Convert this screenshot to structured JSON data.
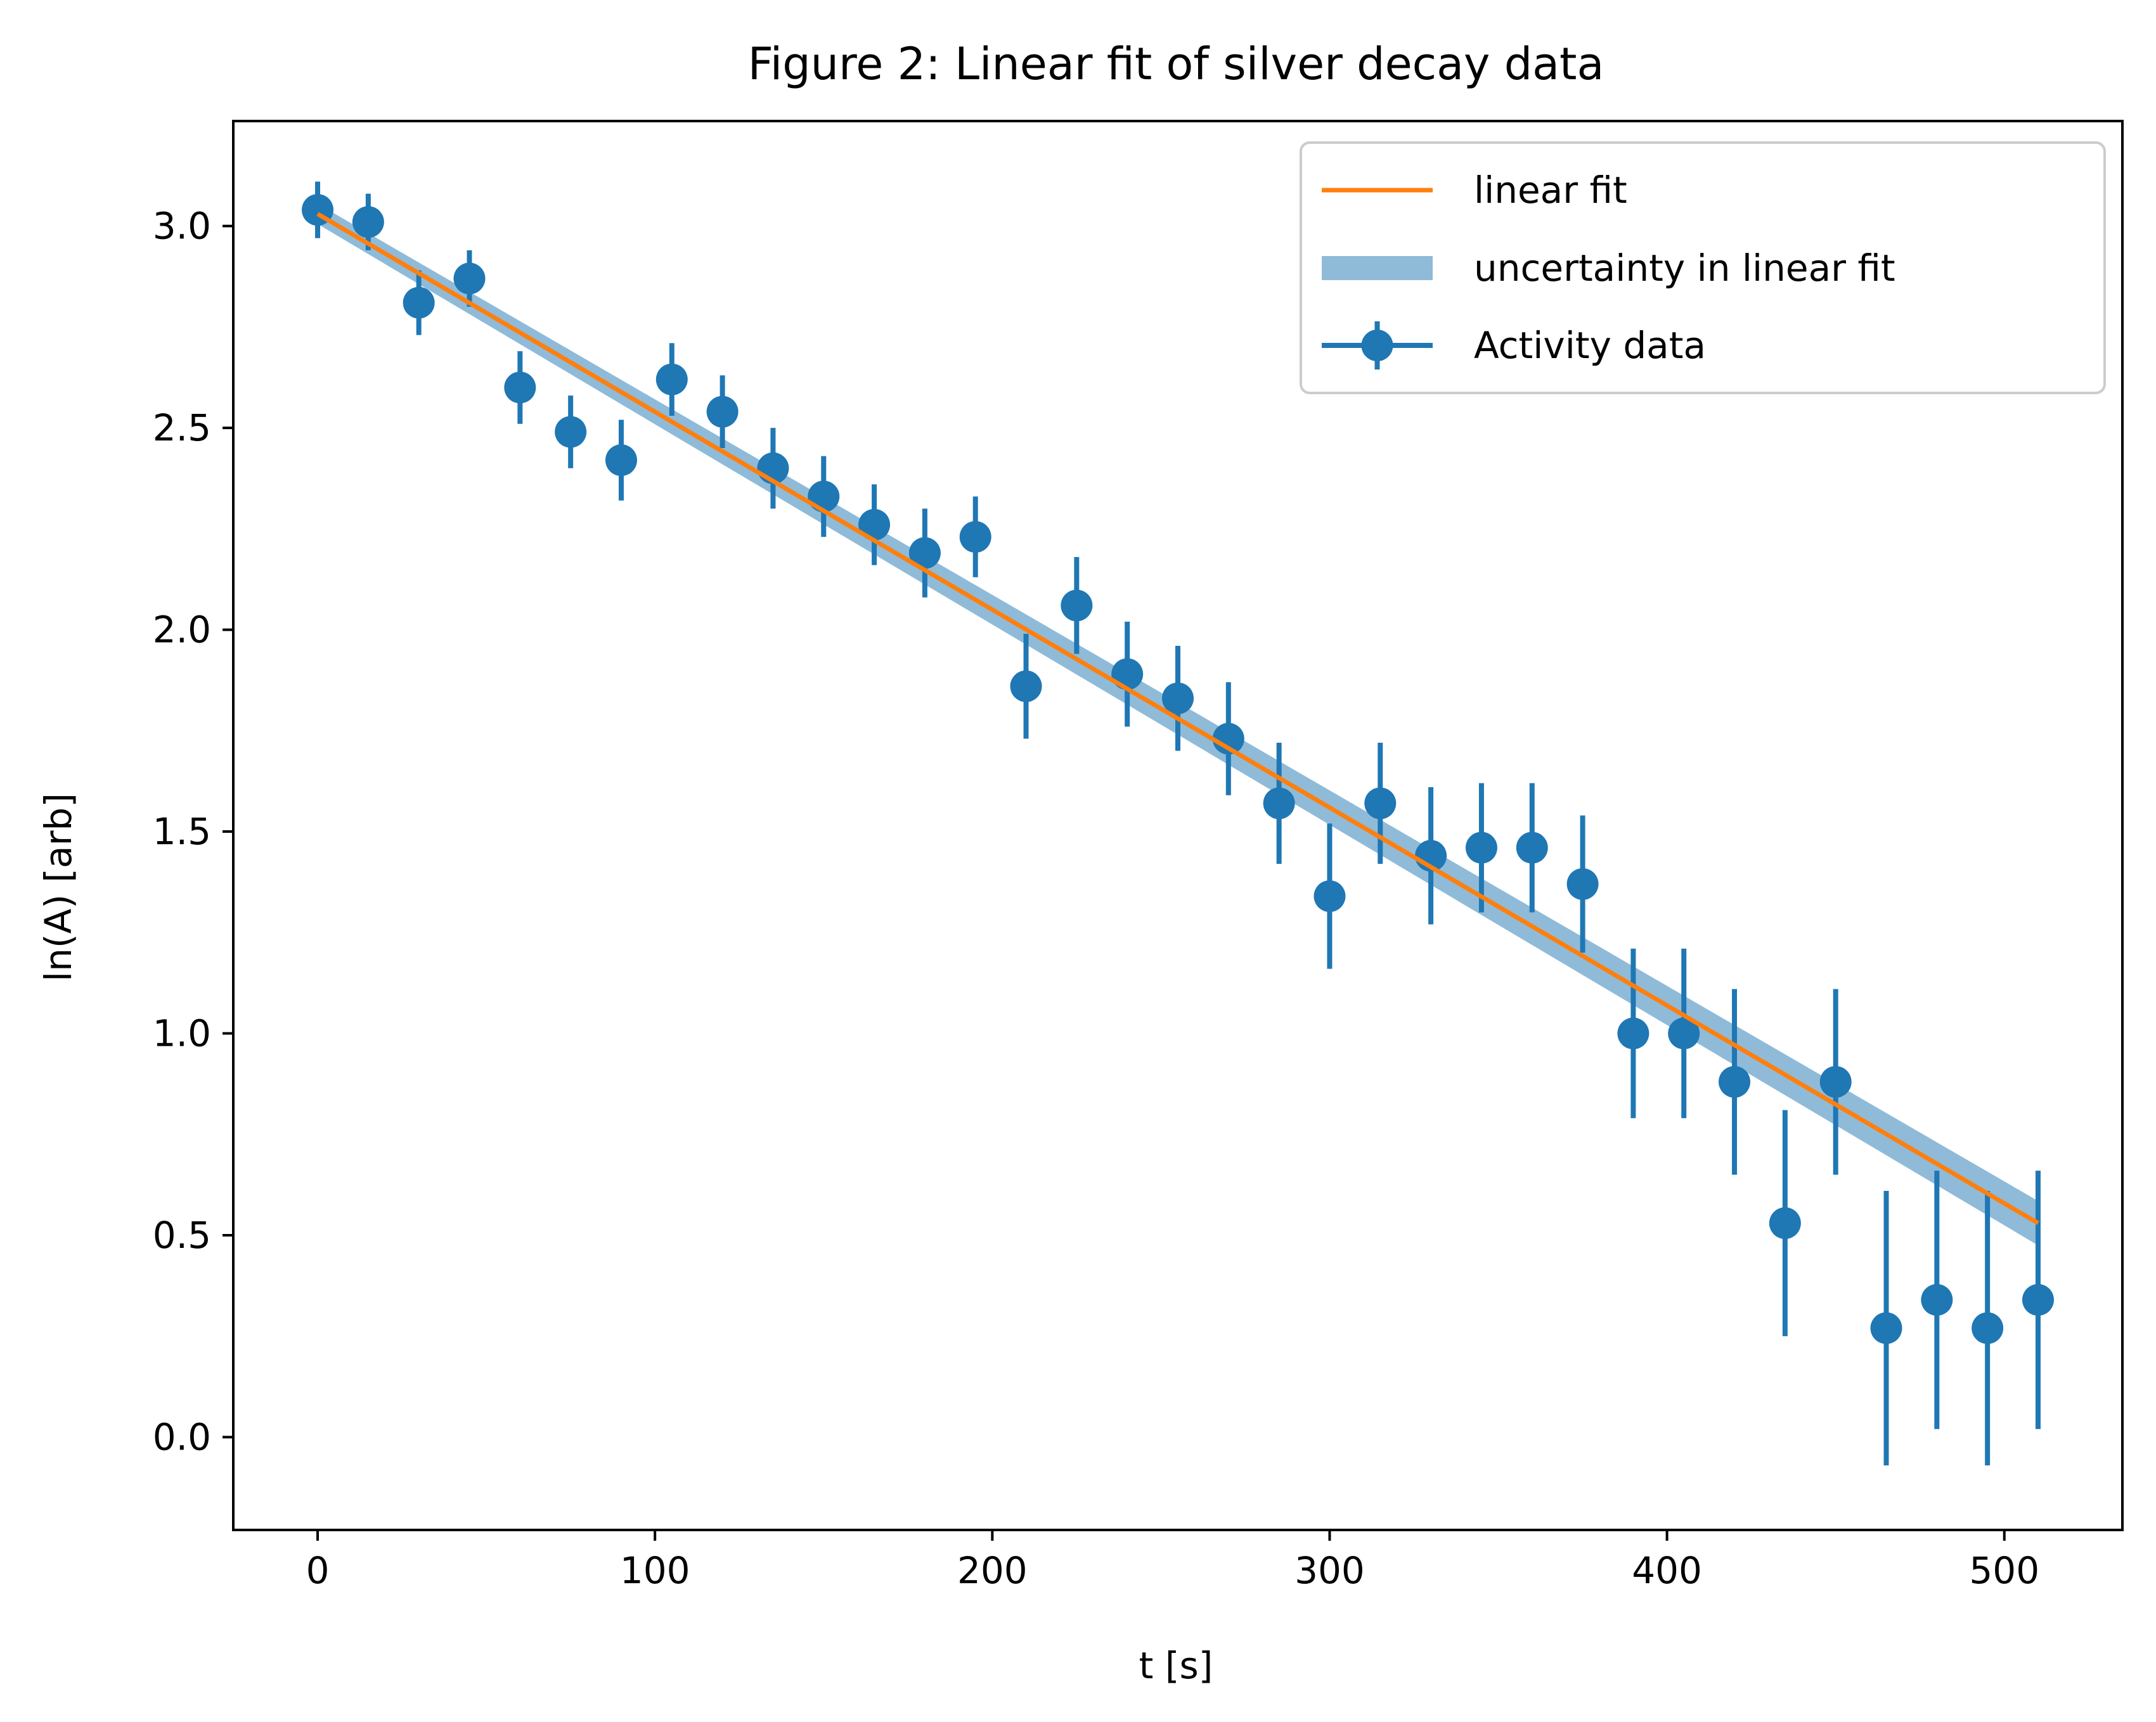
{
  "chart_data": {
    "type": "scatter",
    "title": "Figure 2: Linear fit of silver decay data",
    "xlabel": "t [s]",
    "ylabel": "ln(A) [arb]",
    "xlim": [
      -25,
      535
    ],
    "ylim": [
      -0.23,
      3.26
    ],
    "x_ticks": [
      0,
      100,
      200,
      300,
      400,
      500
    ],
    "x_tick_labels": [
      "0",
      "100",
      "200",
      "300",
      "400",
      "500"
    ],
    "y_ticks": [
      0.0,
      0.5,
      1.0,
      1.5,
      2.0,
      2.5,
      3.0
    ],
    "y_tick_labels": [
      "0.0",
      "0.5",
      "1.0",
      "1.5",
      "2.0",
      "2.5",
      "3.0"
    ],
    "grid": false,
    "legend_position": "top-right",
    "colors": {
      "data": "#1f77b4",
      "fit": "#ff7f0e",
      "band": "#1f77b4"
    },
    "legend": [
      {
        "label": "linear fit",
        "kind": "line"
      },
      {
        "label": "uncertainty in linear fit",
        "kind": "band"
      },
      {
        "label": "Activity data",
        "kind": "errorbar"
      }
    ],
    "series": [
      {
        "name": "Activity data",
        "kind": "errorbar",
        "x": [
          0,
          15,
          30,
          45,
          60,
          75,
          90,
          105,
          120,
          135,
          150,
          165,
          180,
          195,
          210,
          225,
          240,
          255,
          270,
          285,
          300,
          315,
          330,
          345,
          360,
          375,
          390,
          405,
          420,
          435,
          450,
          465,
          480,
          495,
          510
        ],
        "y": [
          3.04,
          3.01,
          2.81,
          2.87,
          2.6,
          2.49,
          2.42,
          2.62,
          2.54,
          2.4,
          2.33,
          2.26,
          2.19,
          2.23,
          1.86,
          2.06,
          1.89,
          1.83,
          1.73,
          1.57,
          1.34,
          1.57,
          1.44,
          1.46,
          1.46,
          1.37,
          1.0,
          1.0,
          0.88,
          0.53,
          0.88,
          0.27,
          0.34,
          0.27,
          0.34
        ],
        "yerr": [
          0.07,
          0.07,
          0.08,
          0.07,
          0.09,
          0.09,
          0.1,
          0.09,
          0.09,
          0.1,
          0.1,
          0.1,
          0.11,
          0.1,
          0.13,
          0.12,
          0.13,
          0.13,
          0.14,
          0.15,
          0.18,
          0.15,
          0.17,
          0.16,
          0.16,
          0.17,
          0.21,
          0.21,
          0.23,
          0.28,
          0.23,
          0.34,
          0.32,
          0.34,
          0.32
        ]
      },
      {
        "name": "linear fit",
        "kind": "line",
        "x": [
          0,
          510
        ],
        "y": [
          3.03,
          0.53
        ]
      },
      {
        "name": "uncertainty in linear fit",
        "kind": "band",
        "x": [
          0,
          510
        ],
        "y_lower": [
          3.005,
          0.475
        ],
        "y_upper": [
          3.055,
          0.585
        ]
      }
    ]
  }
}
